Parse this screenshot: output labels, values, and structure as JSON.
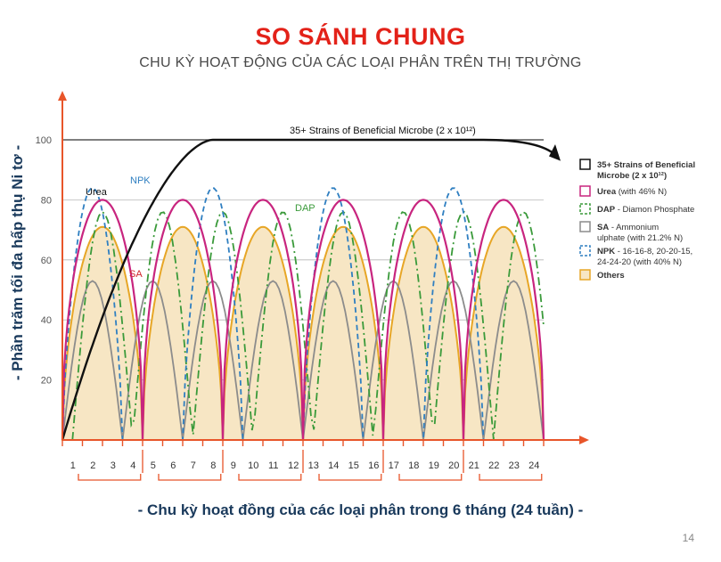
{
  "header": {
    "title": "SO SÁNH CHUNG",
    "subtitle": "CHU KỲ HOẠT ĐỘNG CỦA CÁC LOẠI PHÂN TRÊN THỊ TRƯỜNG"
  },
  "page_number": "14",
  "chart_data": {
    "type": "line",
    "ylabel": "- Phần trăm tối đa hấp thụ Ni tơ -",
    "xlabel": "- Chu kỳ hoạt đồng của các loại phân trong 6 tháng (24 tuần) -",
    "yticks": [
      20,
      40,
      60,
      80,
      100
    ],
    "ylim": [
      0,
      105
    ],
    "xlim": [
      0,
      24
    ],
    "xticks": [
      "1",
      "2",
      "3",
      "4",
      "5",
      "6",
      "7",
      "8",
      "9",
      "10",
      "11",
      "12",
      "13",
      "14",
      "15",
      "16",
      "17",
      "18",
      "19",
      "20",
      "21",
      "22",
      "23",
      "24"
    ],
    "grid": true,
    "legend_position": "right",
    "colors": {
      "microbe": "#111111",
      "urea": "#c8257f",
      "dap": "#3a9a3a",
      "sa": "#8c8c8c",
      "npk": "#2f7fc1",
      "others": "#e7a626",
      "others_fill": "#f7e6c4",
      "axis": "#e8552a",
      "title": "#e32219"
    },
    "series": [
      {
        "key": "microbe",
        "legend": "35+ Strains of Beneficial Microbe (2 x 10¹²)",
        "label": "35+ Strains of Beneficial Microbe (2 x 10¹²)",
        "peak": 100,
        "x_at_peak": 7.5
      },
      {
        "key": "urea",
        "legend": "Urea (with 46% N)",
        "label": "Urea",
        "peak": 80,
        "period": 4
      },
      {
        "key": "dap",
        "legend": "DAP - Diamon Phosphate",
        "label": "DAP",
        "peak": 76,
        "period": 6,
        "start": 0.5
      },
      {
        "key": "sa",
        "legend": "SA - Ammonium Sulphate (with 21.2% N)",
        "label": "SA",
        "peak": 53,
        "period": 6
      },
      {
        "key": "npk",
        "legend": "NPK - 16-16-8, 20-20-15, 24-24-20 (with 40% N)",
        "label": "NPK",
        "peak": 84,
        "period": 6
      },
      {
        "key": "others",
        "legend": "Others",
        "peak": 71,
        "period": 4
      }
    ]
  }
}
